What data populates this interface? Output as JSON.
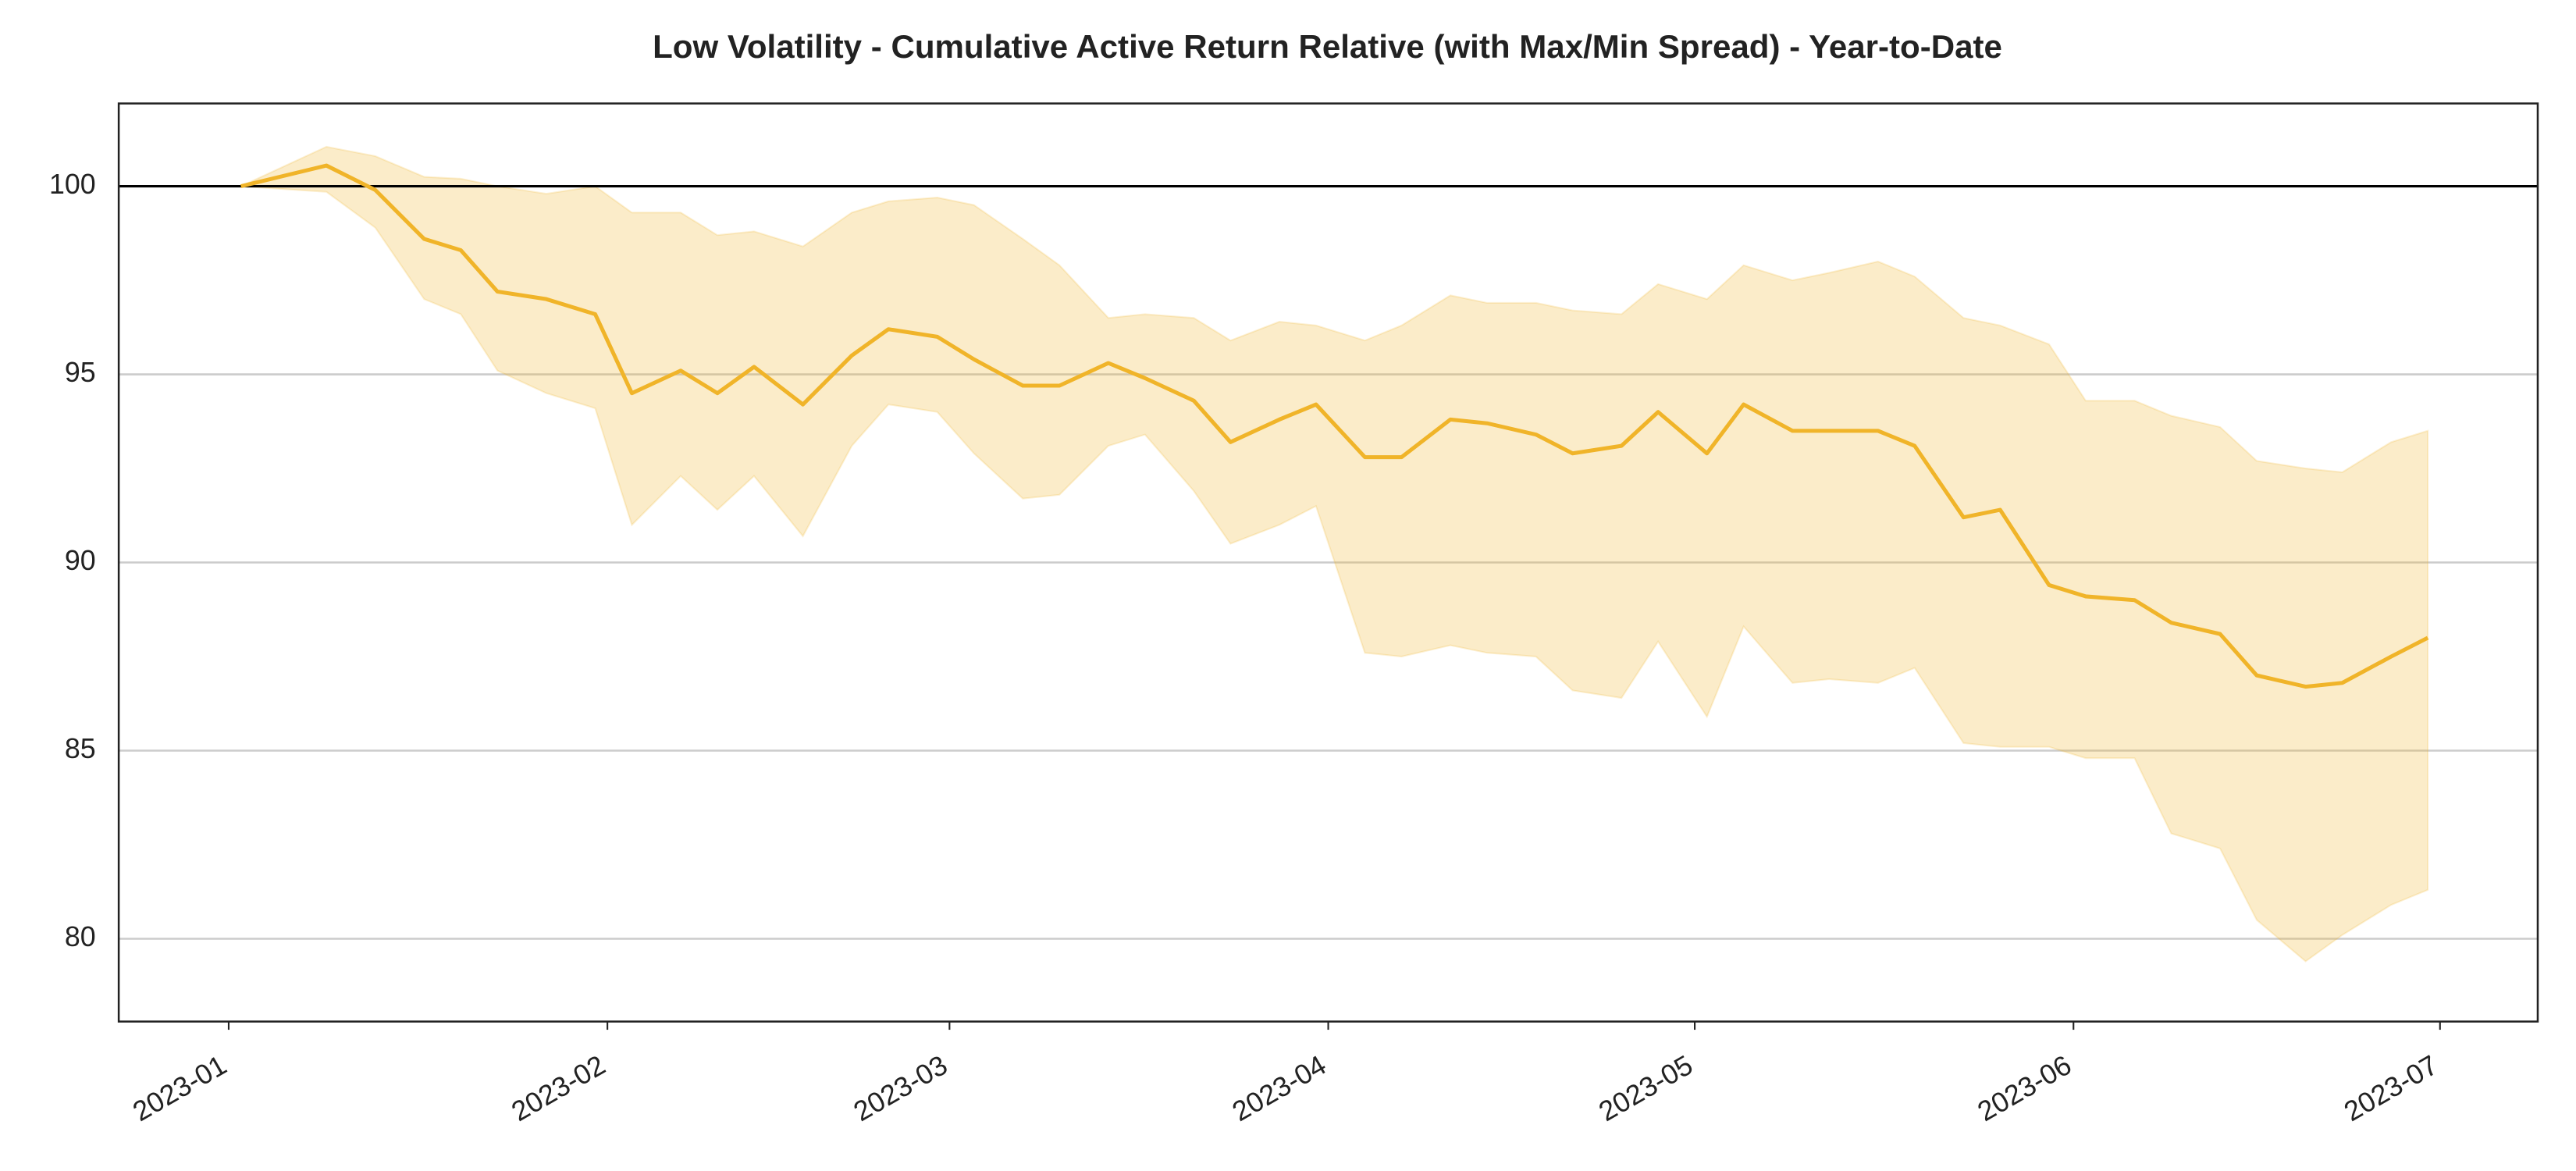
{
  "chart_data": {
    "type": "line",
    "title": "Low Volatility - Cumulative Active Return Relative (with Max/Min Spread) - Year-to-Date",
    "x": [
      "2023-01-02",
      "2023-01-09",
      "2023-01-13",
      "2023-01-17",
      "2023-01-20",
      "2023-01-23",
      "2023-01-27",
      "2023-01-31",
      "2023-02-03",
      "2023-02-07",
      "2023-02-10",
      "2023-02-13",
      "2023-02-17",
      "2023-02-21",
      "2023-02-24",
      "2023-02-28",
      "2023-03-03",
      "2023-03-07",
      "2023-03-10",
      "2023-03-14",
      "2023-03-17",
      "2023-03-21",
      "2023-03-24",
      "2023-03-28",
      "2023-03-31",
      "2023-04-04",
      "2023-04-07",
      "2023-04-11",
      "2023-04-14",
      "2023-04-18",
      "2023-04-21",
      "2023-04-25",
      "2023-04-28",
      "2023-05-02",
      "2023-05-05",
      "2023-05-09",
      "2023-05-12",
      "2023-05-16",
      "2023-05-19",
      "2023-05-23",
      "2023-05-26",
      "2023-05-30",
      "2023-06-02",
      "2023-06-06",
      "2023-06-09",
      "2023-06-13",
      "2023-06-16",
      "2023-06-20",
      "2023-06-23",
      "2023-06-27",
      "2023-06-30"
    ],
    "values": [
      100.0,
      100.55,
      99.9,
      98.6,
      98.3,
      97.2,
      97.0,
      96.6,
      94.5,
      95.1,
      94.5,
      95.2,
      94.2,
      95.5,
      96.2,
      96.0,
      95.4,
      94.7,
      94.7,
      95.3,
      94.9,
      94.3,
      93.2,
      93.8,
      94.2,
      92.8,
      92.8,
      93.8,
      93.7,
      93.4,
      92.9,
      93.1,
      94.0,
      92.9,
      94.2,
      93.5,
      93.5,
      93.5,
      93.1,
      91.2,
      91.4,
      89.4,
      89.1,
      89.0,
      88.4,
      88.1,
      87.0,
      86.7,
      86.8,
      87.5,
      88.0
    ],
    "band_max": [
      100.0,
      101.05,
      100.8,
      100.25,
      100.2,
      100.0,
      99.8,
      100.0,
      99.3,
      99.3,
      98.7,
      98.8,
      98.4,
      99.3,
      99.6,
      99.7,
      99.5,
      98.6,
      97.9,
      96.5,
      96.6,
      96.5,
      95.9,
      96.4,
      96.3,
      95.9,
      96.3,
      97.1,
      96.9,
      96.9,
      96.7,
      96.6,
      97.4,
      97.0,
      97.9,
      97.5,
      97.7,
      98.0,
      97.6,
      96.5,
      96.3,
      95.8,
      94.3,
      94.3,
      93.9,
      93.6,
      92.7,
      92.5,
      92.4,
      93.2,
      93.5
    ],
    "band_min": [
      100.0,
      99.85,
      98.9,
      97.0,
      96.6,
      95.1,
      94.5,
      94.1,
      91.0,
      92.3,
      91.4,
      92.3,
      90.7,
      93.1,
      94.2,
      94.0,
      92.9,
      91.7,
      91.8,
      93.1,
      93.4,
      91.9,
      90.5,
      91.0,
      91.5,
      87.6,
      87.5,
      87.8,
      87.6,
      87.5,
      86.6,
      86.4,
      87.9,
      85.9,
      88.3,
      86.8,
      86.9,
      86.8,
      87.2,
      85.2,
      85.1,
      85.1,
      84.8,
      84.8,
      82.8,
      82.4,
      80.5,
      79.4,
      80.1,
      80.9,
      81.3
    ],
    "color": "#f0b429",
    "reference_line": 100,
    "xlim": [
      "2022-12-23",
      "2023-07-09"
    ],
    "xticks": [
      "2023-01",
      "2023-02",
      "2023-03",
      "2023-04",
      "2023-05",
      "2023-06",
      "2023-07"
    ],
    "ylim": [
      77.8,
      102.2
    ],
    "yticks": [
      80,
      85,
      90,
      95,
      100
    ],
    "grid": true
  }
}
